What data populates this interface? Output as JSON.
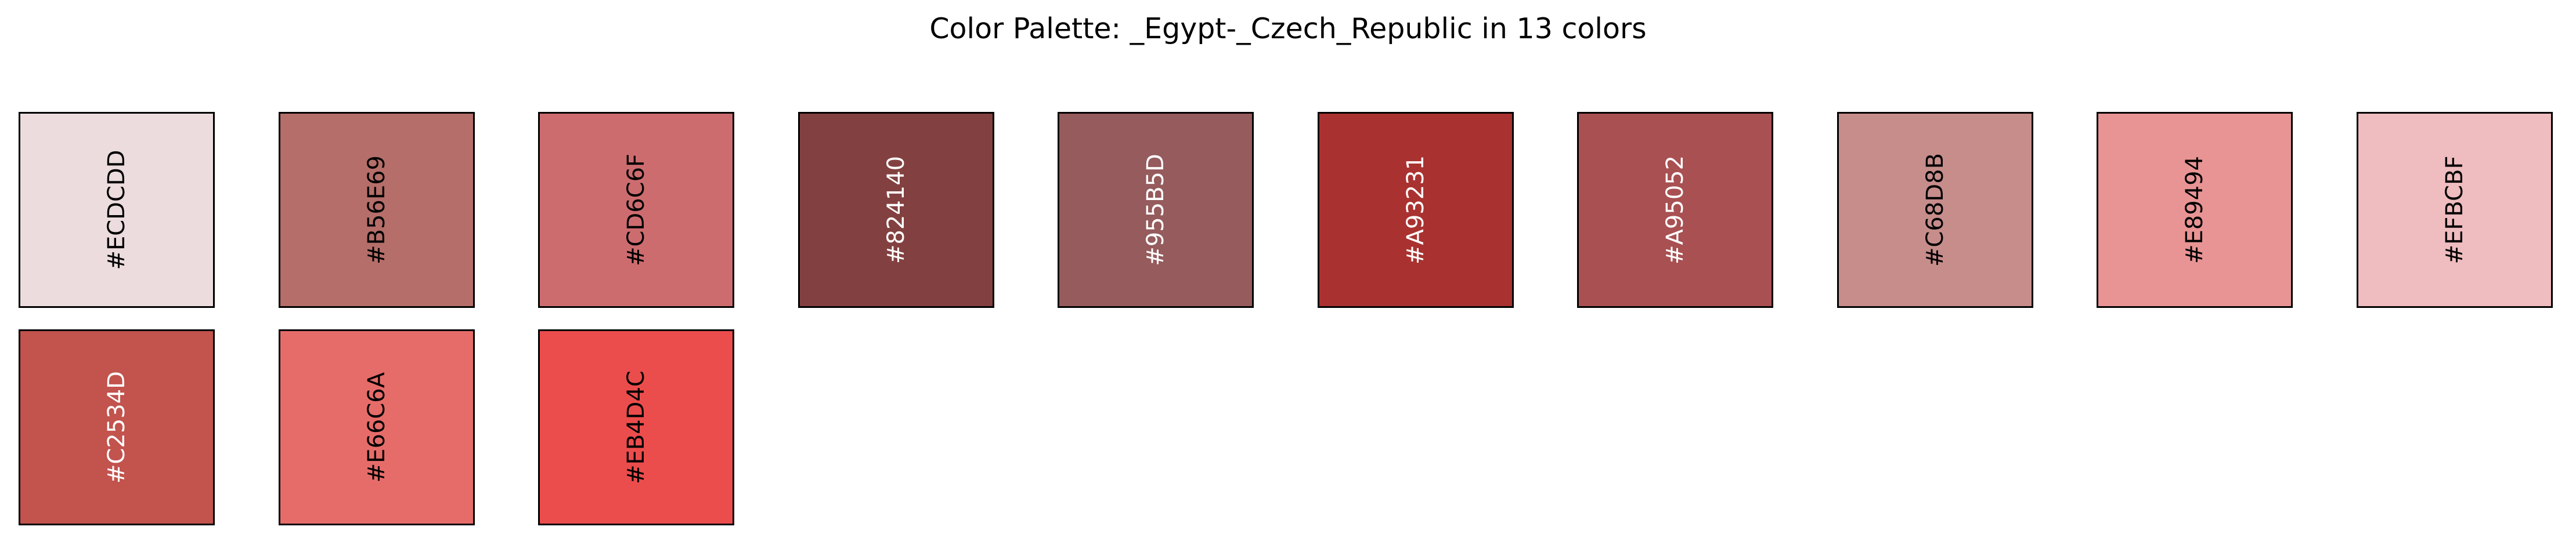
{
  "title": "Color Palette: _Egypt-_Czech_Republic in 13 colors",
  "swatches": [
    {
      "hex": "#ECDCDD",
      "label": "#ECDCDD",
      "text_color": "#000000"
    },
    {
      "hex": "#B56E69",
      "label": "#B56E69",
      "text_color": "#000000"
    },
    {
      "hex": "#CD6C6F",
      "label": "#CD6C6F",
      "text_color": "#000000"
    },
    {
      "hex": "#824140",
      "label": "#824140",
      "text_color": "#ffffff"
    },
    {
      "hex": "#955B5D",
      "label": "#955B5D",
      "text_color": "#ffffff"
    },
    {
      "hex": "#A93231",
      "label": "#A93231",
      "text_color": "#ffffff"
    },
    {
      "hex": "#A95052",
      "label": "#A95052",
      "text_color": "#ffffff"
    },
    {
      "hex": "#C68D8B",
      "label": "#C68D8B",
      "text_color": "#000000"
    },
    {
      "hex": "#E89494",
      "label": "#E89494",
      "text_color": "#000000"
    },
    {
      "hex": "#EFBCBF",
      "label": "#EFBCBF",
      "text_color": "#000000"
    },
    {
      "hex": "#C2534D",
      "label": "#C2534D",
      "text_color": "#ffffff"
    },
    {
      "hex": "#E66C6A",
      "label": "#E66C6A",
      "text_color": "#000000"
    },
    {
      "hex": "#EB4D4C",
      "label": "#EB4D4C",
      "text_color": "#000000"
    }
  ]
}
